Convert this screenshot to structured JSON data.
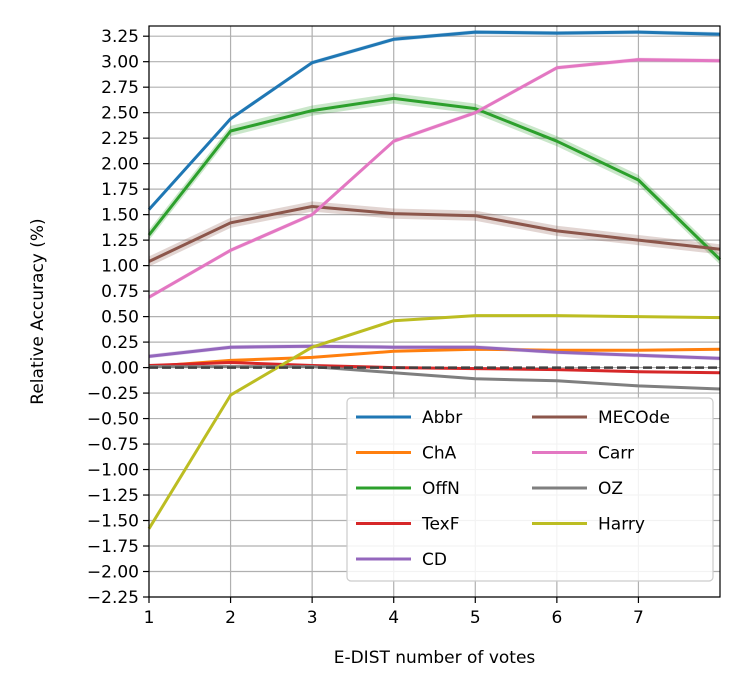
{
  "chart_data": {
    "type": "line",
    "xlabel": "E-DIST number of votes",
    "ylabel": "Relative Accuracy (%)",
    "x": [
      1,
      2,
      3,
      4,
      5,
      6,
      7,
      8
    ],
    "xlim": [
      1,
      8
    ],
    "ylim": [
      -2.25,
      3.35
    ],
    "xticks": [
      1,
      2,
      3,
      4,
      5,
      6,
      7
    ],
    "yticks": [
      3.25,
      3.0,
      2.75,
      2.5,
      2.25,
      2.0,
      1.75,
      1.5,
      1.25,
      1.0,
      0.75,
      0.5,
      0.25,
      0.0,
      -0.25,
      -0.5,
      -0.75,
      -1.0,
      -1.25,
      -1.5,
      -1.75,
      -2.0,
      -2.25
    ],
    "ytick_labels": [
      "3.25",
      "3.00",
      "2.75",
      "2.50",
      "2.25",
      "2.00",
      "1.75",
      "1.50",
      "1.25",
      "1.00",
      "0.75",
      "0.50",
      "0.25",
      "0.00",
      "−0.25",
      "−0.50",
      "−0.75",
      "−1.00",
      "−1.25",
      "−1.50",
      "−1.75",
      "−2.00",
      "−2.25"
    ],
    "grid": true,
    "legend_position": "lower-right",
    "legend_columns": 2,
    "reference_line": {
      "y": 0.0,
      "style": "dashed",
      "color": "#404040"
    },
    "series": [
      {
        "name": "Abbr",
        "color": "#1f77b4",
        "values": [
          1.55,
          2.44,
          2.99,
          3.22,
          3.29,
          3.28,
          3.29,
          3.27
        ],
        "band": 0.02
      },
      {
        "name": "ChA",
        "color": "#ff7f0e",
        "values": [
          0.01,
          0.07,
          0.1,
          0.16,
          0.18,
          0.17,
          0.17,
          0.18
        ],
        "band": 0.01
      },
      {
        "name": "OffN",
        "color": "#2ca02c",
        "values": [
          1.3,
          2.32,
          2.52,
          2.64,
          2.54,
          2.22,
          1.84,
          1.06
        ],
        "band": 0.05
      },
      {
        "name": "TexF",
        "color": "#d62728",
        "values": [
          0.02,
          0.05,
          0.02,
          0.0,
          -0.01,
          -0.02,
          -0.04,
          -0.05
        ],
        "band": 0.01
      },
      {
        "name": "CD",
        "color": "#9467bd",
        "values": [
          0.11,
          0.2,
          0.21,
          0.2,
          0.2,
          0.15,
          0.12,
          0.09
        ],
        "band": 0.02
      },
      {
        "name": "MECOde",
        "color": "#8c564b",
        "values": [
          1.04,
          1.42,
          1.58,
          1.51,
          1.49,
          1.34,
          1.25,
          1.16
        ],
        "band": 0.05
      },
      {
        "name": "Carr",
        "color": "#e377c2",
        "values": [
          0.69,
          1.15,
          1.5,
          2.22,
          2.5,
          2.94,
          3.02,
          3.01
        ],
        "band": 0.02
      },
      {
        "name": "OZ",
        "color": "#7f7f7f",
        "values": [
          0.01,
          0.01,
          0.01,
          -0.05,
          -0.11,
          -0.13,
          -0.18,
          -0.21
        ],
        "band": 0.01
      },
      {
        "name": "Harry",
        "color": "#bcbd22",
        "values": [
          -1.58,
          -0.27,
          0.2,
          0.46,
          0.51,
          0.51,
          0.5,
          0.49
        ],
        "band": 0.01
      }
    ]
  }
}
